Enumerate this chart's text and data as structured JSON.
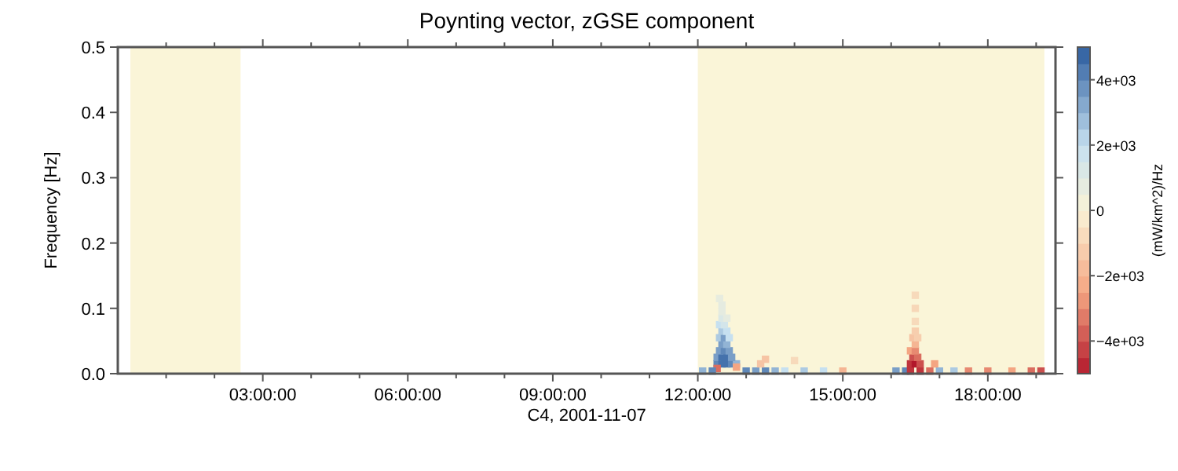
{
  "chart_data": {
    "type": "scatter",
    "title": "Poynting vector, zGSE component",
    "xlabel": "C4, 2001-11-07",
    "ylabel": "Frequency [Hz]",
    "clabel": "(mW/km^2)/Hz",
    "marker": "square",
    "grid": false,
    "xlim": [
      0,
      19.4
    ],
    "xticks": [
      {
        "value": 1,
        "label": null
      },
      {
        "value": 2,
        "label": null
      },
      {
        "value": 3,
        "label": "03:00:00"
      },
      {
        "value": 4,
        "label": null
      },
      {
        "value": 5,
        "label": null
      },
      {
        "value": 6,
        "label": "06:00:00"
      },
      {
        "value": 7,
        "label": null
      },
      {
        "value": 8,
        "label": null
      },
      {
        "value": 9,
        "label": "09:00:00"
      },
      {
        "value": 10,
        "label": null
      },
      {
        "value": 11,
        "label": null
      },
      {
        "value": 12,
        "label": "12:00:00"
      },
      {
        "value": 13,
        "label": null
      },
      {
        "value": 14,
        "label": null
      },
      {
        "value": 15,
        "label": "15:00:00"
      },
      {
        "value": 16,
        "label": null
      },
      {
        "value": 17,
        "label": null
      },
      {
        "value": 18,
        "label": "18:00:00"
      },
      {
        "value": 19,
        "label": null
      }
    ],
    "ylim": [
      0,
      0.5
    ],
    "yticks": [
      {
        "value": 0,
        "label": "0.0"
      },
      0.1,
      0.2,
      0.3,
      0.4,
      0.5
    ],
    "clim": [
      -5000,
      5000
    ],
    "cticks": [
      {
        "value": -4000,
        "label": "−4e+03"
      },
      {
        "value": -2000,
        "label": "−2e+03"
      },
      0,
      {
        "value": 2000,
        "label": "2e+03"
      },
      {
        "value": 4000,
        "label": "4e+03"
      }
    ],
    "bands": [
      {
        "axis": "x",
        "from": 0.26,
        "to": 2.54,
        "color": "#faf5d8"
      },
      {
        "axis": "x",
        "from": 12.0,
        "to": 19.17,
        "color": "#faf5d8"
      }
    ],
    "x": [
      12.4,
      12.5,
      12.6,
      12.7,
      12.8,
      12.4,
      12.5,
      12.6,
      12.7,
      12.45,
      12.55,
      12.65,
      12.5,
      12.6,
      12.45,
      12.55,
      12.65,
      12.5,
      12.6,
      12.45,
      12.55,
      12.5,
      12.6,
      12.5,
      12.5,
      12.45,
      12.4,
      12.8,
      12.1,
      12.3,
      13.0,
      13.2,
      13.4,
      13.6,
      13.8,
      14.2,
      14.6,
      15.0,
      13.3,
      13.4,
      14.0,
      16.1,
      16.3,
      16.4,
      16.6,
      16.8,
      17.0,
      17.3,
      17.6,
      18.0,
      18.5,
      18.9,
      19.1,
      16.4,
      16.5,
      16.6,
      16.9,
      16.45,
      16.55,
      16.4,
      16.5,
      16.5,
      16.45,
      16.55,
      16.5,
      16.5,
      16.5,
      16.5
    ],
    "values": [
      0.015,
      0.015,
      0.015,
      0.015,
      0.015,
      0.025,
      0.025,
      0.025,
      0.025,
      0.035,
      0.035,
      0.035,
      0.045,
      0.045,
      0.055,
      0.055,
      0.055,
      0.065,
      0.065,
      0.075,
      0.075,
      0.085,
      0.085,
      0.095,
      0.105,
      0.115,
      0.008,
      0.01,
      0.004,
      0.004,
      0.004,
      0.004,
      0.004,
      0.004,
      0.004,
      0.004,
      0.004,
      0.004,
      0.015,
      0.022,
      0.02,
      0.004,
      0.004,
      0.004,
      0.004,
      0.004,
      0.004,
      0.004,
      0.004,
      0.004,
      0.004,
      0.004,
      0.004,
      0.015,
      0.015,
      0.015,
      0.015,
      0.025,
      0.025,
      0.035,
      0.035,
      0.045,
      0.055,
      0.055,
      0.065,
      0.08,
      0.1,
      0.12
    ],
    "cvalues": [
      4000,
      4500,
      4500,
      4000,
      3000,
      3500,
      4500,
      4500,
      3500,
      3500,
      4000,
      3500,
      3500,
      3000,
      2500,
      3500,
      2000,
      2500,
      2000,
      2000,
      1500,
      1200,
      800,
      800,
      800,
      700,
      -3500,
      -2500,
      3000,
      4000,
      4000,
      3500,
      4000,
      3000,
      2000,
      2500,
      2000,
      -2000,
      -1500,
      -1500,
      -800,
      3500,
      4000,
      -4500,
      -4500,
      -3500,
      3000,
      2500,
      -3000,
      -3000,
      -2500,
      -3500,
      -4000,
      -4500,
      -5000,
      -4000,
      -2500,
      -4000,
      -3500,
      -2500,
      -3000,
      -2000,
      -1500,
      -1200,
      -1200,
      -800,
      -900,
      -800
    ]
  }
}
